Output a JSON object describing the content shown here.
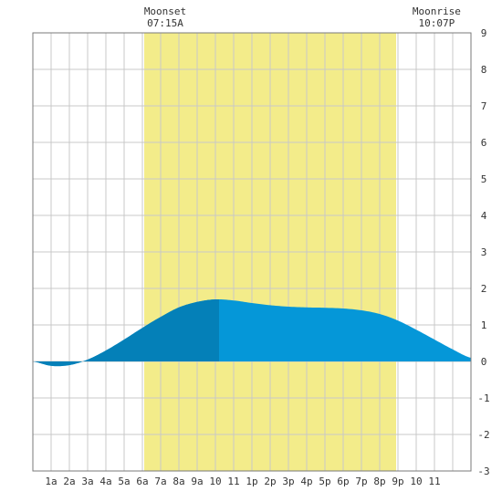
{
  "chart_data": {
    "type": "area",
    "x_tick_labels": [
      "1a",
      "2a",
      "3a",
      "4a",
      "5a",
      "6a",
      "7a",
      "8a",
      "9a",
      "10",
      "11",
      "1p",
      "2p",
      "3p",
      "4p",
      "5p",
      "6p",
      "7p",
      "8p",
      "9p",
      "10",
      "11"
    ],
    "y_tick_labels": [
      "9",
      "8",
      "7",
      "6",
      "5",
      "4",
      "3",
      "2",
      "1",
      "0",
      "-1",
      "-2",
      "-3"
    ],
    "ylim": [
      -3,
      9
    ],
    "xlim_hours": [
      0,
      24
    ],
    "grid": true,
    "daylight": {
      "start_hour": 6.1,
      "end_hour": 19.9
    },
    "annotations": [
      {
        "label": "Moonset",
        "time": "07:15A",
        "hour": 7.25
      },
      {
        "label": "Moonrise",
        "time": "10:07P",
        "hour": 22.12
      }
    ],
    "series": [
      {
        "x_hours": [
          0,
          1,
          2,
          3,
          4,
          5,
          6,
          7,
          8,
          9,
          10,
          11,
          12,
          13,
          14,
          15,
          16,
          17,
          18,
          19,
          20,
          21,
          22,
          23,
          24
        ],
        "values": [
          0.0,
          -0.12,
          -0.1,
          0.05,
          0.3,
          0.6,
          0.92,
          1.22,
          1.48,
          1.63,
          1.7,
          1.67,
          1.6,
          1.54,
          1.5,
          1.48,
          1.47,
          1.45,
          1.4,
          1.3,
          1.12,
          0.87,
          0.6,
          0.33,
          0.1
        ],
        "dark_shade_until_hour": 10.2
      }
    ],
    "colors": {
      "daylight": "#f3ec8a",
      "tide_fill": "#0597d8",
      "tide_fill_dark": "#0480b8",
      "grid": "#c8c8c8",
      "axis": "#7a7a7a",
      "text": "#333333"
    }
  }
}
